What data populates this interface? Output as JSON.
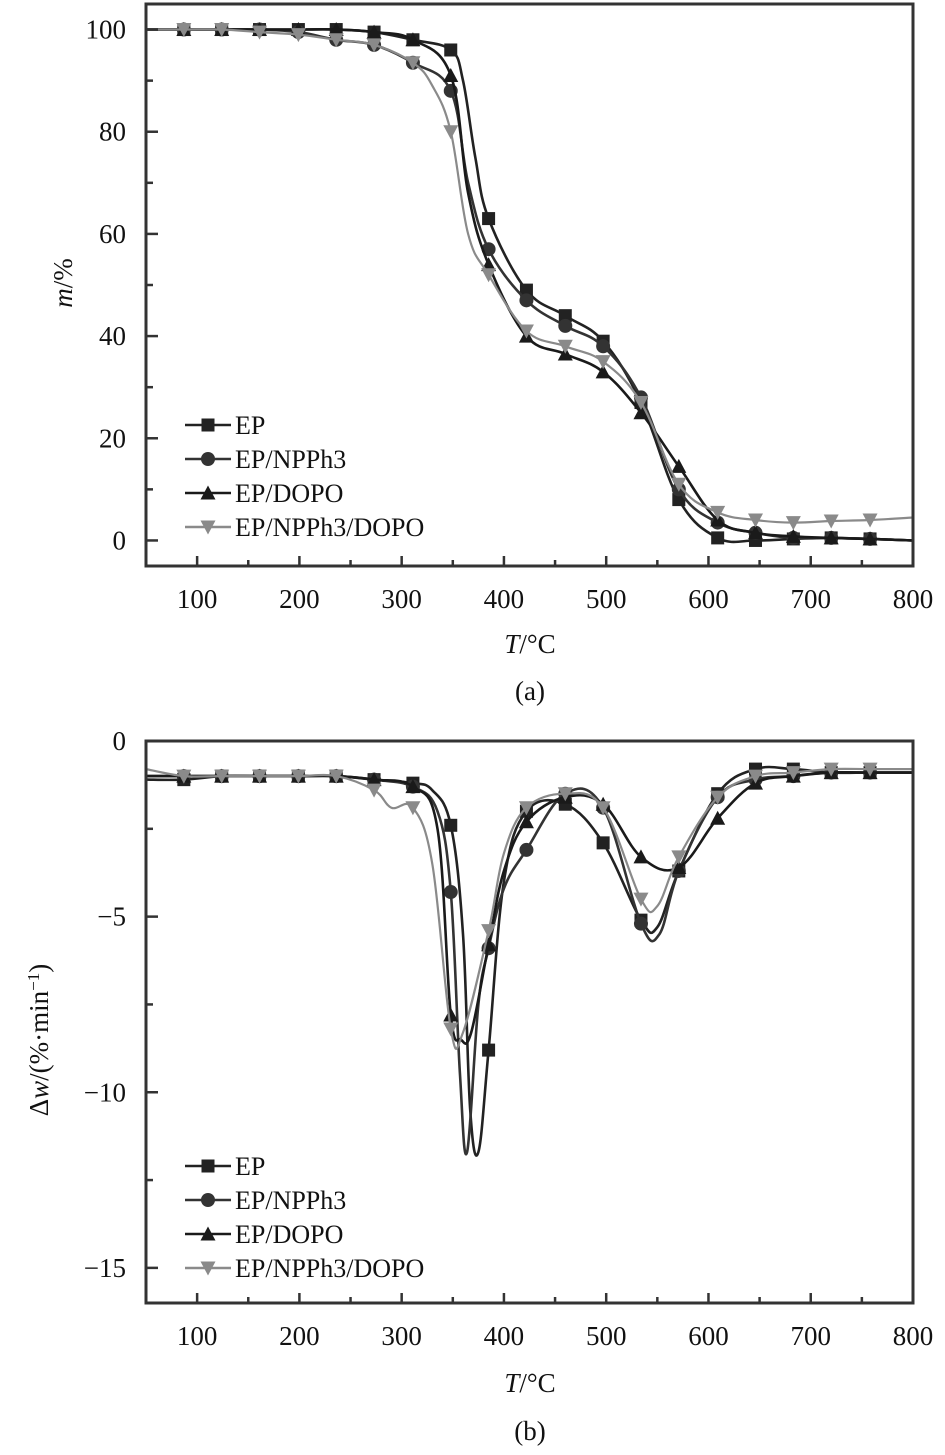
{
  "chart_data": [
    {
      "type": "line",
      "panel": "(a)",
      "caption": "(a)",
      "xlabel_italic": "T",
      "xlabel_rest": "/°C",
      "ylabel_italic": "m",
      "ylabel_rest": "/%",
      "xlim": [
        50,
        800
      ],
      "ylim": [
        -5,
        105
      ],
      "xticks": [
        100,
        200,
        300,
        400,
        500,
        600,
        700,
        800
      ],
      "xtick_labels": [
        "100",
        "200",
        "300",
        "400",
        "500",
        "600",
        "700",
        "800"
      ],
      "yticks": [
        0,
        20,
        40,
        60,
        80,
        100
      ],
      "ytick_labels": [
        "0",
        "20",
        "40",
        "60",
        "80",
        "100"
      ],
      "legend_position": "bottom-left",
      "grid": false,
      "series": [
        {
          "name": "EP",
          "marker": "square",
          "color": "#222222",
          "x": [
            50,
            87,
            124,
            161,
            199,
            236,
            273,
            311,
            348,
            360,
            372,
            385,
            422,
            460,
            497,
            534,
            571,
            609,
            646,
            683,
            720,
            758,
            800
          ],
          "y": [
            100,
            100,
            100,
            100,
            100,
            100,
            99.5,
            98,
            96,
            90,
            75,
            63,
            49,
            44,
            39,
            27,
            8,
            0.5,
            0,
            0.3,
            0.5,
            0.3,
            0
          ],
          "marker_x": [
            87,
            124,
            161,
            199,
            236,
            273,
            311,
            348,
            385,
            422,
            460,
            497,
            534,
            571,
            609,
            646,
            683,
            720,
            758
          ]
        },
        {
          "name": "EP/NPPh3",
          "marker": "circle",
          "color": "#333333",
          "x": [
            50,
            87,
            124,
            161,
            199,
            236,
            273,
            311,
            348,
            365,
            385,
            422,
            460,
            497,
            534,
            571,
            609,
            646,
            683,
            720,
            758,
            800
          ],
          "y": [
            100,
            100,
            100,
            100,
            99.5,
            98,
            97,
            93.5,
            88,
            70,
            57,
            47,
            42,
            38,
            28,
            10,
            3.5,
            1.5,
            0.5,
            0.5,
            0.3,
            0
          ],
          "marker_x": [
            87,
            124,
            161,
            199,
            236,
            273,
            311,
            348,
            385,
            422,
            460,
            497,
            534,
            571,
            609,
            646,
            683,
            720,
            758
          ]
        },
        {
          "name": "EP/DOPO",
          "marker": "triangle-up",
          "color": "#1a1a1a",
          "x": [
            50,
            87,
            124,
            161,
            199,
            236,
            273,
            311,
            348,
            365,
            385,
            422,
            460,
            497,
            534,
            571,
            609,
            646,
            683,
            720,
            758,
            800
          ],
          "y": [
            100,
            100,
            100,
            100,
            100,
            100,
            99.5,
            98,
            91,
            68,
            54,
            40,
            36.5,
            33,
            25,
            14.5,
            4,
            1.5,
            0.8,
            0.5,
            0.3,
            0
          ],
          "marker_x": [
            87,
            124,
            161,
            199,
            236,
            273,
            311,
            348,
            385,
            422,
            460,
            497,
            534,
            571,
            609,
            646,
            683,
            720,
            758
          ]
        },
        {
          "name": "EP/NPPh3/DOPO",
          "marker": "triangle-down",
          "color": "#8a8a8a",
          "x": [
            50,
            87,
            124,
            161,
            199,
            236,
            273,
            311,
            330,
            348,
            365,
            385,
            422,
            460,
            497,
            534,
            571,
            609,
            646,
            683,
            720,
            758,
            800
          ],
          "y": [
            100,
            100,
            100,
            99.5,
            99,
            98,
            97,
            93.5,
            89,
            80,
            60,
            52,
            41,
            38,
            35,
            27,
            11,
            5.5,
            4,
            3.5,
            3.8,
            4,
            4.5
          ],
          "marker_x": [
            87,
            124,
            161,
            199,
            236,
            273,
            311,
            348,
            385,
            422,
            460,
            497,
            534,
            571,
            609,
            646,
            683,
            720,
            758
          ]
        }
      ]
    },
    {
      "type": "line",
      "panel": "(b)",
      "caption": "(b)",
      "xlabel_italic": "T",
      "xlabel_rest": "/°C",
      "ylabel_prefix": "Δ",
      "ylabel_italic": "w",
      "ylabel_rest": "/(%·min",
      "ylabel_sup": "−1",
      "ylabel_close": ")",
      "xlim": [
        50,
        800
      ],
      "ylim": [
        -16,
        0
      ],
      "xticks": [
        100,
        200,
        300,
        400,
        500,
        600,
        700,
        800
      ],
      "xtick_labels": [
        "100",
        "200",
        "300",
        "400",
        "500",
        "600",
        "700",
        "800"
      ],
      "yticks": [
        0,
        -5,
        -10,
        -15
      ],
      "ytick_labels": [
        "0",
        "−5",
        "−10",
        "−15"
      ],
      "legend_position": "bottom-left",
      "grid": false,
      "series": [
        {
          "name": "EP",
          "marker": "square",
          "color": "#222222",
          "x": [
            50,
            87,
            124,
            161,
            199,
            236,
            273,
            311,
            330,
            348,
            360,
            367,
            375,
            385,
            400,
            422,
            460,
            497,
            534,
            550,
            571,
            609,
            646,
            683,
            720,
            758,
            800
          ],
          "y": [
            -1.1,
            -1.1,
            -1.0,
            -1.0,
            -1.0,
            -1.0,
            -1.1,
            -1.2,
            -1.4,
            -2.4,
            -5.5,
            -10.5,
            -11.7,
            -8.8,
            -4.0,
            -2.0,
            -1.8,
            -2.9,
            -5.1,
            -5.3,
            -3.7,
            -1.5,
            -0.8,
            -0.8,
            -0.9,
            -0.9,
            -0.9
          ],
          "marker_x": [
            87,
            124,
            161,
            199,
            236,
            273,
            311,
            348,
            385,
            422,
            460,
            497,
            534,
            571,
            609,
            646,
            683,
            720,
            758
          ]
        },
        {
          "name": "EP/NPPh3",
          "marker": "circle",
          "color": "#333333",
          "x": [
            50,
            87,
            124,
            161,
            199,
            236,
            273,
            311,
            335,
            348,
            357,
            364,
            375,
            385,
            400,
            422,
            460,
            497,
            534,
            552,
            571,
            609,
            646,
            683,
            720,
            758,
            800
          ],
          "y": [
            -1.0,
            -1.0,
            -1.0,
            -1.0,
            -1.0,
            -1.0,
            -1.1,
            -1.3,
            -2.0,
            -4.3,
            -9.5,
            -11.7,
            -7.5,
            -5.9,
            -4.2,
            -3.1,
            -1.5,
            -1.9,
            -5.2,
            -5.5,
            -3.7,
            -1.6,
            -1.1,
            -1.0,
            -0.9,
            -0.9,
            -0.9
          ],
          "marker_x": [
            87,
            124,
            161,
            199,
            236,
            273,
            311,
            348,
            385,
            422,
            460,
            497,
            534,
            571,
            609,
            646,
            683,
            720,
            758
          ]
        },
        {
          "name": "EP/DOPO",
          "marker": "triangle-up",
          "color": "#1a1a1a",
          "x": [
            50,
            87,
            124,
            161,
            199,
            236,
            273,
            311,
            335,
            348,
            358,
            368,
            385,
            400,
            422,
            460,
            497,
            534,
            571,
            609,
            646,
            683,
            720,
            758,
            800
          ],
          "y": [
            -1.0,
            -1.0,
            -1.0,
            -1.0,
            -1.0,
            -1.0,
            -1.1,
            -1.3,
            -2.5,
            -7.8,
            -8.5,
            -8.3,
            -5.8,
            -3.7,
            -2.3,
            -1.6,
            -1.8,
            -3.3,
            -3.6,
            -2.2,
            -1.2,
            -1.0,
            -0.9,
            -0.9,
            -0.9
          ],
          "marker_x": [
            87,
            124,
            161,
            199,
            236,
            273,
            311,
            348,
            385,
            422,
            460,
            497,
            534,
            571,
            609,
            646,
            683,
            720,
            758
          ]
        },
        {
          "name": "EP/NPPh3/DOPO",
          "marker": "triangle-down",
          "color": "#8a8a8a",
          "x": [
            50,
            87,
            124,
            161,
            199,
            236,
            273,
            290,
            311,
            330,
            348,
            360,
            385,
            400,
            422,
            460,
            497,
            534,
            550,
            571,
            609,
            646,
            683,
            720,
            758,
            800
          ],
          "y": [
            -0.8,
            -1.0,
            -1.0,
            -1.0,
            -1.0,
            -1.0,
            -1.4,
            -1.9,
            -1.9,
            -3.5,
            -8.2,
            -8.3,
            -5.4,
            -3.2,
            -1.9,
            -1.5,
            -1.9,
            -4.5,
            -4.7,
            -3.3,
            -1.6,
            -1.0,
            -0.9,
            -0.8,
            -0.8,
            -0.8
          ],
          "marker_x": [
            87,
            124,
            161,
            199,
            236,
            273,
            311,
            348,
            385,
            422,
            460,
            497,
            534,
            571,
            609,
            646,
            683,
            720,
            758
          ]
        }
      ]
    }
  ]
}
